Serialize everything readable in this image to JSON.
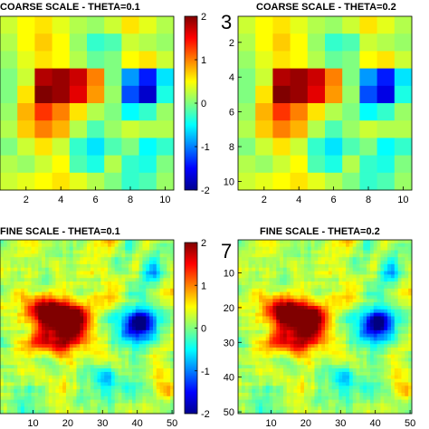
{
  "chart_data": [
    {
      "type": "heatmap",
      "title": "COARSE SCALE - THETA=0.1",
      "grid": [
        10,
        10
      ],
      "values": [
        [
          0.3,
          0.5,
          0.6,
          0.4,
          0.2,
          0.1,
          0.3,
          0.6,
          0.4,
          0.2
        ],
        [
          0.2,
          0.5,
          0.7,
          0.5,
          0.1,
          -0.3,
          -0.2,
          0.3,
          0.2,
          0.1
        ],
        [
          0.1,
          0.4,
          0.6,
          0.5,
          0.2,
          -0.1,
          0.0,
          0.5,
          0.6,
          0.3
        ],
        [
          0.0,
          0.3,
          1.8,
          1.9,
          1.7,
          1.0,
          0.0,
          -0.9,
          -1.4,
          -0.6
        ],
        [
          0.0,
          0.6,
          2.0,
          1.9,
          1.6,
          0.9,
          0.1,
          -1.2,
          -1.7,
          -0.4
        ],
        [
          0.1,
          0.8,
          1.3,
          1.0,
          0.6,
          0.2,
          0.0,
          -0.5,
          -0.3,
          0.1
        ],
        [
          0.2,
          0.7,
          1.0,
          0.8,
          0.2,
          -0.2,
          0.1,
          0.3,
          0.2,
          0.2
        ],
        [
          0.0,
          0.3,
          0.6,
          0.3,
          -0.3,
          -0.6,
          -0.2,
          0.0,
          -0.5,
          -0.3
        ],
        [
          0.2,
          0.1,
          0.3,
          0.5,
          -0.2,
          -0.4,
          0.2,
          -0.3,
          -0.4,
          0.0
        ],
        [
          0.3,
          0.4,
          0.5,
          0.6,
          0.4,
          0.2,
          0.0,
          -0.3,
          -0.2,
          0.1
        ]
      ],
      "xticks": [
        2,
        4,
        6,
        8,
        10
      ],
      "yticks": [],
      "colorbar": {
        "range": [
          -2,
          2
        ],
        "ticks": [
          2,
          1,
          0,
          -1,
          -2
        ]
      }
    },
    {
      "type": "heatmap",
      "title": "COARSE SCALE - THETA=0.2",
      "grid": [
        10,
        10
      ],
      "values": [
        [
          0.3,
          0.5,
          0.6,
          0.4,
          0.2,
          0.1,
          0.3,
          0.6,
          0.4,
          0.2
        ],
        [
          0.2,
          0.5,
          0.7,
          0.5,
          0.1,
          -0.3,
          -0.2,
          0.3,
          0.2,
          0.1
        ],
        [
          0.1,
          0.4,
          0.6,
          0.5,
          0.2,
          -0.1,
          0.0,
          0.5,
          0.6,
          0.3
        ],
        [
          0.0,
          0.3,
          1.8,
          1.9,
          1.7,
          1.0,
          0.0,
          -0.9,
          -1.4,
          -0.6
        ],
        [
          0.0,
          0.6,
          2.0,
          1.9,
          1.6,
          0.9,
          0.1,
          -1.2,
          -1.6,
          -0.4
        ],
        [
          0.1,
          0.8,
          1.3,
          1.0,
          0.6,
          0.2,
          0.0,
          -0.5,
          -0.3,
          0.1
        ],
        [
          0.2,
          0.7,
          1.0,
          0.8,
          0.2,
          -0.2,
          0.1,
          0.3,
          0.2,
          0.2
        ],
        [
          0.0,
          0.3,
          0.6,
          0.3,
          -0.3,
          -0.6,
          -0.2,
          0.0,
          -0.5,
          -0.3
        ],
        [
          0.2,
          0.1,
          0.3,
          0.5,
          -0.2,
          -0.4,
          0.2,
          -0.3,
          -0.4,
          0.0
        ],
        [
          0.3,
          0.4,
          0.5,
          0.6,
          0.4,
          0.2,
          0.0,
          -0.3,
          -0.2,
          0.1
        ]
      ],
      "xticks": [
        2,
        4,
        6,
        8,
        10
      ],
      "yticks": [
        2,
        4,
        6,
        8,
        10
      ]
    },
    {
      "type": "heatmap",
      "title": "FINE SCALE - THETA=0.1",
      "grid": [
        50,
        50
      ],
      "values_note_hidden": "",
      "xticks": [
        10,
        20,
        30,
        40,
        50
      ],
      "yticks": [],
      "colorbar": {
        "range": [
          -2,
          2
        ],
        "ticks": [
          2,
          1,
          0,
          -1,
          -2
        ]
      }
    },
    {
      "type": "heatmap",
      "title": "FINE SCALE - THETA=0.2",
      "grid": [
        50,
        50
      ],
      "xticks": [
        10,
        20,
        30,
        40,
        50
      ],
      "yticks": [
        10,
        20,
        30,
        40,
        50
      ]
    }
  ],
  "panel_labels": [
    "3",
    "7"
  ],
  "colormap": "jet"
}
